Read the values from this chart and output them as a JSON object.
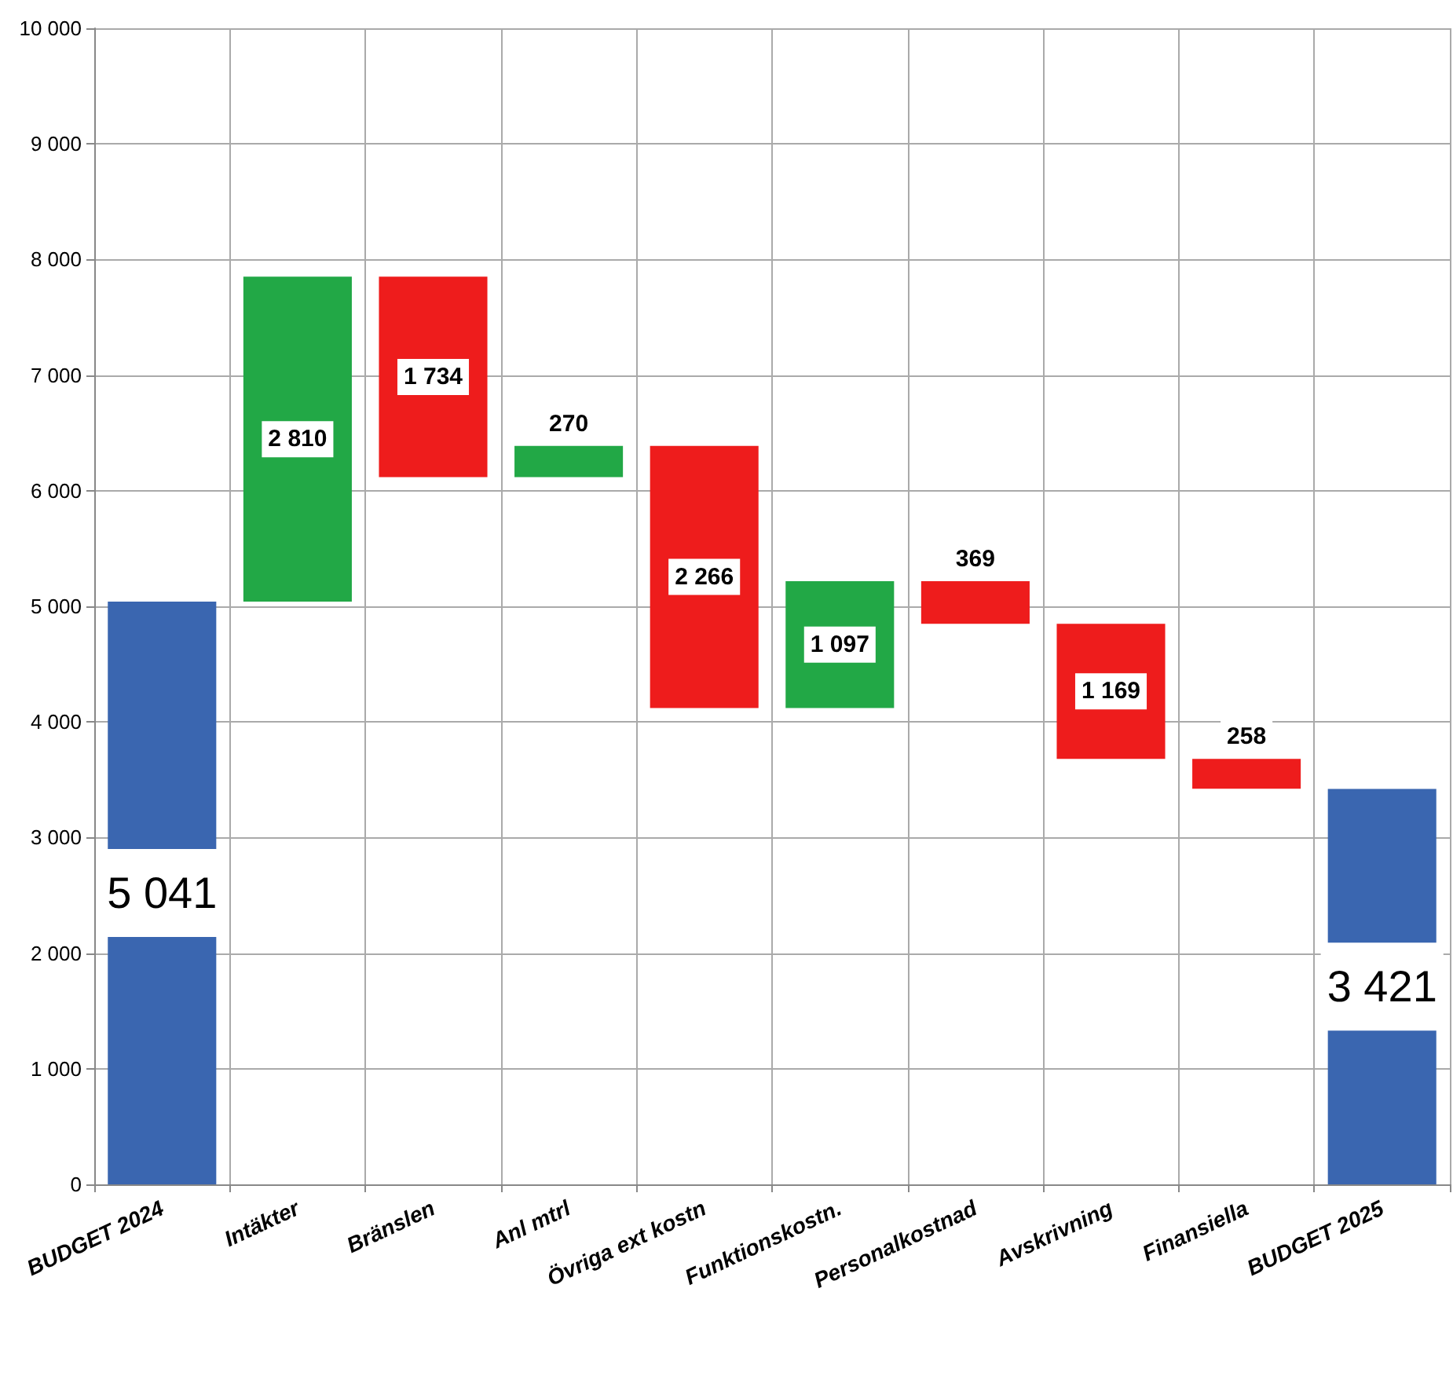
{
  "chart_data": {
    "type": "bar",
    "categories": [
      "BUDGET 2024",
      "Intäkter",
      "Bränslen",
      "Anl mtrl",
      "Övriga ext kostn",
      "Funktionskostn.",
      "Personalkostnad",
      "Avskrivning",
      "Finansiella",
      "BUDGET 2025"
    ],
    "values": [
      5041,
      2810,
      1734,
      270,
      2266,
      1097,
      369,
      1169,
      258,
      3421
    ],
    "base": [
      0,
      5041,
      6117,
      6117,
      4121,
      4121,
      4849,
      3680,
      3422,
      0
    ],
    "colors": [
      "#3a66b0",
      "#22a846",
      "#ee1c1c",
      "#22a846",
      "#ee1c1c",
      "#22a846",
      "#ee1c1c",
      "#ee1c1c",
      "#ee1c1c",
      "#3a66b0"
    ],
    "value_labels": [
      "5 041",
      "2 810",
      "1 734",
      "270",
      "2 266",
      "1 097",
      "369",
      "1 169",
      "258",
      "3 421"
    ],
    "ylim": [
      0,
      10000
    ],
    "yticks": [
      {
        "value": 0,
        "label": "0"
      },
      {
        "value": 1000,
        "label": "1 000"
      },
      {
        "value": 2000,
        "label": "2 000"
      },
      {
        "value": 3000,
        "label": "3 000"
      },
      {
        "value": 4000,
        "label": "4 000"
      },
      {
        "value": 5000,
        "label": "5 000"
      },
      {
        "value": 6000,
        "label": "6 000"
      },
      {
        "value": 7000,
        "label": "7 000"
      },
      {
        "value": 8000,
        "label": "8 000"
      },
      {
        "value": 9000,
        "label": "9 000"
      },
      {
        "value": 10000,
        "label": "10 000"
      }
    ],
    "grid": true
  }
}
